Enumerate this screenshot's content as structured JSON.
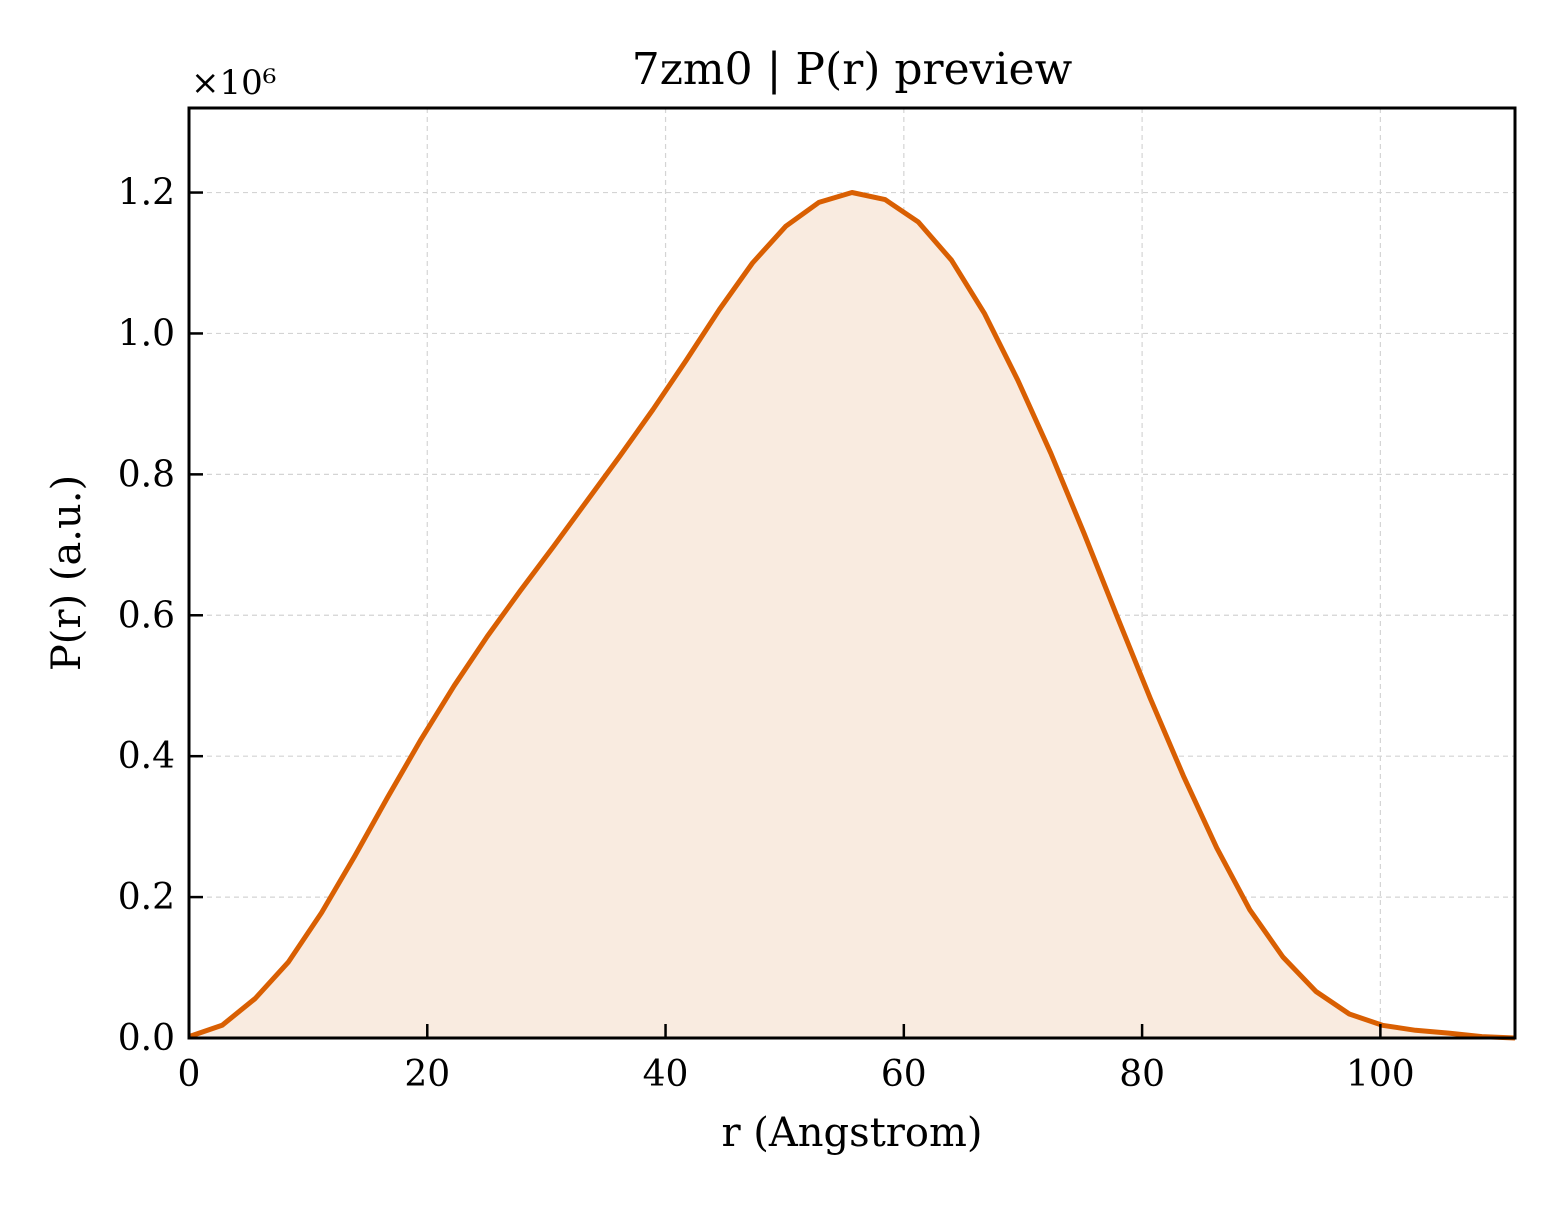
{
  "chart_data": {
    "type": "area",
    "title": "7zm0 | P(r) preview",
    "xlabel": "r (Angstrom)",
    "ylabel": "P(r) (a.u.)",
    "y_offset_label": "×10⁶",
    "xlim": [
      0,
      111.3
    ],
    "ylim": [
      0,
      1.32
    ],
    "y_multiplier": 1000000,
    "xticks": [
      0,
      20,
      40,
      60,
      80,
      100
    ],
    "xtick_labels": [
      "0",
      "20",
      "40",
      "60",
      "80",
      "100"
    ],
    "yticks": [
      0.0,
      0.2,
      0.4,
      0.6,
      0.8,
      1.0,
      1.2
    ],
    "ytick_labels": [
      "0.0",
      "0.2",
      "0.4",
      "0.6",
      "0.8",
      "1.0",
      "1.2"
    ],
    "grid": true,
    "line_color": "#d95f02",
    "fill_color": "#f9ebe0",
    "series": [
      {
        "x": [
          0,
          2.78,
          5.56,
          8.35,
          11.13,
          13.91,
          16.69,
          19.48,
          22.26,
          25.04,
          27.82,
          30.61,
          33.39,
          36.17,
          38.95,
          41.74,
          44.52,
          47.3,
          50.08,
          52.87,
          55.65,
          58.43,
          61.22,
          64.0,
          66.78,
          69.56,
          72.34,
          75.13,
          77.91,
          80.69,
          83.47,
          86.26,
          89.04,
          91.82,
          94.6,
          97.39,
          100.17,
          102.95,
          105.73,
          108.52,
          111.3
        ],
        "y": [
          0.002,
          0.018,
          0.056,
          0.108,
          0.178,
          0.258,
          0.342,
          0.424,
          0.5,
          0.57,
          0.635,
          0.698,
          0.762,
          0.826,
          0.892,
          0.962,
          1.034,
          1.1,
          1.152,
          1.186,
          1.2,
          1.19,
          1.158,
          1.104,
          1.028,
          0.934,
          0.83,
          0.716,
          0.598,
          0.482,
          0.372,
          0.27,
          0.182,
          0.115,
          0.066,
          0.034,
          0.018,
          0.011,
          0.007,
          0.002,
          0.0
        ]
      }
    ]
  }
}
